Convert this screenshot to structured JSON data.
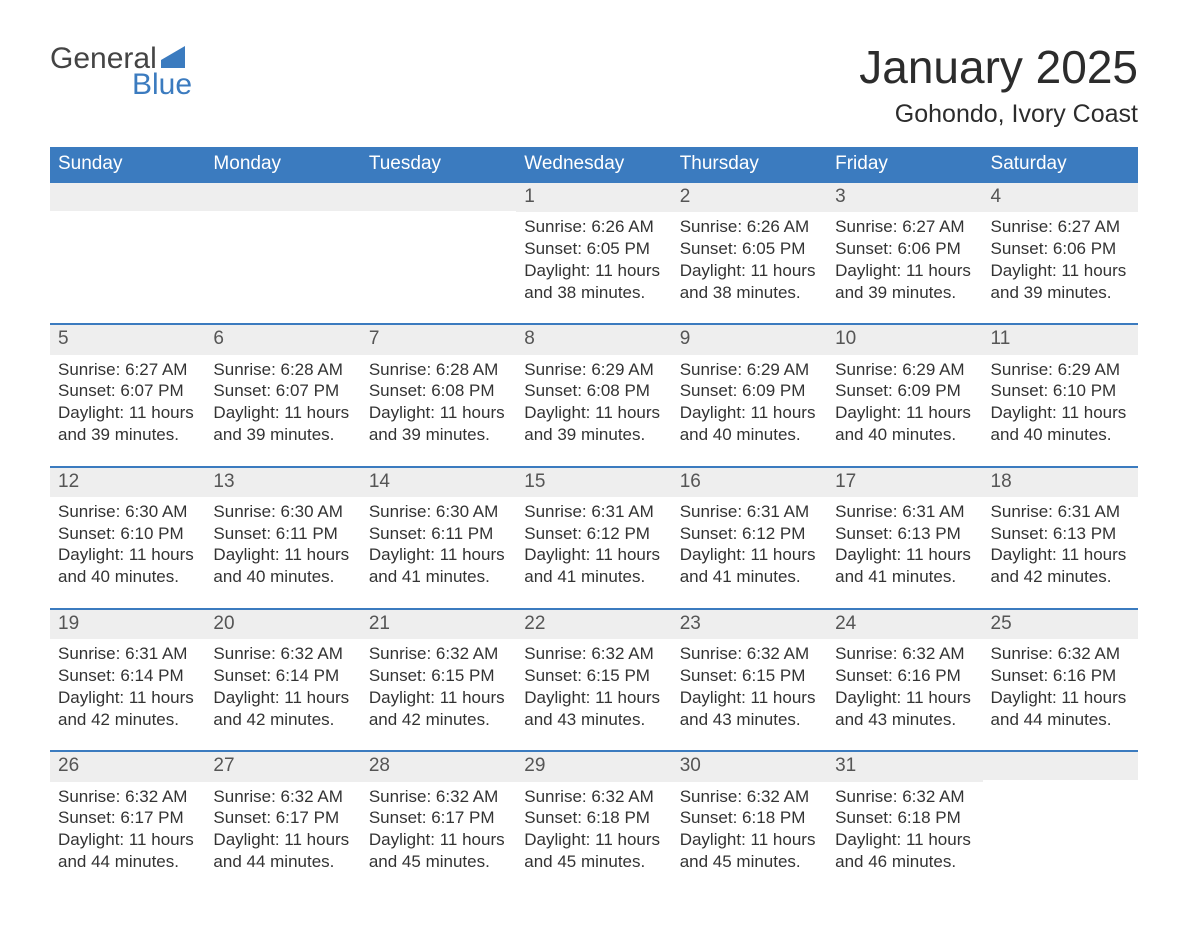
{
  "brand": {
    "line1": "General",
    "line2": "Blue",
    "flag_color": "#3b7bbf"
  },
  "title": {
    "month": "January 2025",
    "location": "Gohondo, Ivory Coast"
  },
  "colors": {
    "header_bg": "#3b7bbf",
    "header_text": "#ffffff",
    "day_number_bg": "#eeeeee",
    "row_border": "#3b7bbf",
    "body_text": "#333333"
  },
  "weekdays": [
    "Sunday",
    "Monday",
    "Tuesday",
    "Wednesday",
    "Thursday",
    "Friday",
    "Saturday"
  ],
  "labels": {
    "sunrise": "Sunrise",
    "sunset": "Sunset",
    "daylight": "Daylight",
    "hours": "hours",
    "and": "and",
    "minutes": "minutes"
  },
  "weeks": [
    [
      null,
      null,
      null,
      {
        "n": 1,
        "sunrise": "6:26 AM",
        "sunset": "6:05 PM",
        "dl_h": 11,
        "dl_m": 38
      },
      {
        "n": 2,
        "sunrise": "6:26 AM",
        "sunset": "6:05 PM",
        "dl_h": 11,
        "dl_m": 38
      },
      {
        "n": 3,
        "sunrise": "6:27 AM",
        "sunset": "6:06 PM",
        "dl_h": 11,
        "dl_m": 39
      },
      {
        "n": 4,
        "sunrise": "6:27 AM",
        "sunset": "6:06 PM",
        "dl_h": 11,
        "dl_m": 39
      }
    ],
    [
      {
        "n": 5,
        "sunrise": "6:27 AM",
        "sunset": "6:07 PM",
        "dl_h": 11,
        "dl_m": 39
      },
      {
        "n": 6,
        "sunrise": "6:28 AM",
        "sunset": "6:07 PM",
        "dl_h": 11,
        "dl_m": 39
      },
      {
        "n": 7,
        "sunrise": "6:28 AM",
        "sunset": "6:08 PM",
        "dl_h": 11,
        "dl_m": 39
      },
      {
        "n": 8,
        "sunrise": "6:29 AM",
        "sunset": "6:08 PM",
        "dl_h": 11,
        "dl_m": 39
      },
      {
        "n": 9,
        "sunrise": "6:29 AM",
        "sunset": "6:09 PM",
        "dl_h": 11,
        "dl_m": 40
      },
      {
        "n": 10,
        "sunrise": "6:29 AM",
        "sunset": "6:09 PM",
        "dl_h": 11,
        "dl_m": 40
      },
      {
        "n": 11,
        "sunrise": "6:29 AM",
        "sunset": "6:10 PM",
        "dl_h": 11,
        "dl_m": 40
      }
    ],
    [
      {
        "n": 12,
        "sunrise": "6:30 AM",
        "sunset": "6:10 PM",
        "dl_h": 11,
        "dl_m": 40
      },
      {
        "n": 13,
        "sunrise": "6:30 AM",
        "sunset": "6:11 PM",
        "dl_h": 11,
        "dl_m": 40
      },
      {
        "n": 14,
        "sunrise": "6:30 AM",
        "sunset": "6:11 PM",
        "dl_h": 11,
        "dl_m": 41
      },
      {
        "n": 15,
        "sunrise": "6:31 AM",
        "sunset": "6:12 PM",
        "dl_h": 11,
        "dl_m": 41
      },
      {
        "n": 16,
        "sunrise": "6:31 AM",
        "sunset": "6:12 PM",
        "dl_h": 11,
        "dl_m": 41
      },
      {
        "n": 17,
        "sunrise": "6:31 AM",
        "sunset": "6:13 PM",
        "dl_h": 11,
        "dl_m": 41
      },
      {
        "n": 18,
        "sunrise": "6:31 AM",
        "sunset": "6:13 PM",
        "dl_h": 11,
        "dl_m": 42
      }
    ],
    [
      {
        "n": 19,
        "sunrise": "6:31 AM",
        "sunset": "6:14 PM",
        "dl_h": 11,
        "dl_m": 42
      },
      {
        "n": 20,
        "sunrise": "6:32 AM",
        "sunset": "6:14 PM",
        "dl_h": 11,
        "dl_m": 42
      },
      {
        "n": 21,
        "sunrise": "6:32 AM",
        "sunset": "6:15 PM",
        "dl_h": 11,
        "dl_m": 42
      },
      {
        "n": 22,
        "sunrise": "6:32 AM",
        "sunset": "6:15 PM",
        "dl_h": 11,
        "dl_m": 43
      },
      {
        "n": 23,
        "sunrise": "6:32 AM",
        "sunset": "6:15 PM",
        "dl_h": 11,
        "dl_m": 43
      },
      {
        "n": 24,
        "sunrise": "6:32 AM",
        "sunset": "6:16 PM",
        "dl_h": 11,
        "dl_m": 43
      },
      {
        "n": 25,
        "sunrise": "6:32 AM",
        "sunset": "6:16 PM",
        "dl_h": 11,
        "dl_m": 44
      }
    ],
    [
      {
        "n": 26,
        "sunrise": "6:32 AM",
        "sunset": "6:17 PM",
        "dl_h": 11,
        "dl_m": 44
      },
      {
        "n": 27,
        "sunrise": "6:32 AM",
        "sunset": "6:17 PM",
        "dl_h": 11,
        "dl_m": 44
      },
      {
        "n": 28,
        "sunrise": "6:32 AM",
        "sunset": "6:17 PM",
        "dl_h": 11,
        "dl_m": 45
      },
      {
        "n": 29,
        "sunrise": "6:32 AM",
        "sunset": "6:18 PM",
        "dl_h": 11,
        "dl_m": 45
      },
      {
        "n": 30,
        "sunrise": "6:32 AM",
        "sunset": "6:18 PM",
        "dl_h": 11,
        "dl_m": 45
      },
      {
        "n": 31,
        "sunrise": "6:32 AM",
        "sunset": "6:18 PM",
        "dl_h": 11,
        "dl_m": 46
      },
      null
    ]
  ]
}
